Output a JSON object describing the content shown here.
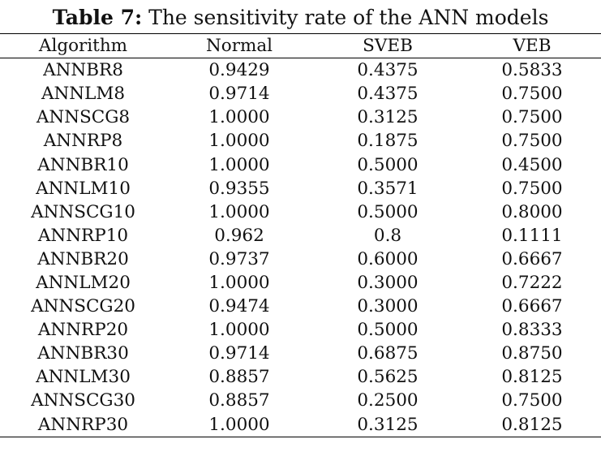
{
  "caption": {
    "label": "Table 7:",
    "text": " The sensitivity rate of the ANN models"
  },
  "table": {
    "headers": [
      "Algorithm",
      "Normal",
      "SVEB",
      "VEB"
    ],
    "rows": [
      [
        "ANNBR8",
        "0.9429",
        "0.4375",
        "0.5833"
      ],
      [
        "ANNLM8",
        "0.9714",
        "0.4375",
        "0.7500"
      ],
      [
        "ANNSCG8",
        "1.0000",
        "0.3125",
        "0.7500"
      ],
      [
        "ANNRP8",
        "1.0000",
        "0.1875",
        "0.7500"
      ],
      [
        "ANNBR10",
        "1.0000",
        "0.5000",
        "0.4500"
      ],
      [
        "ANNLM10",
        "0.9355",
        "0.3571",
        "0.7500"
      ],
      [
        "ANNSCG10",
        "1.0000",
        "0.5000",
        "0.8000"
      ],
      [
        "ANNRP10",
        "0.962",
        "0.8",
        "0.1111"
      ],
      [
        "ANNBR20",
        "0.9737",
        "0.6000",
        "0.6667"
      ],
      [
        "ANNLM20",
        "1.0000",
        "0.3000",
        "0.7222"
      ],
      [
        "ANNSCG20",
        "0.9474",
        "0.3000",
        "0.6667"
      ],
      [
        "ANNRP20",
        "1.0000",
        "0.5000",
        "0.8333"
      ],
      [
        "ANNBR30",
        "0.9714",
        "0.6875",
        "0.8750"
      ],
      [
        "ANNLM30",
        "0.8857",
        "0.5625",
        "0.8125"
      ],
      [
        "ANNSCG30",
        "0.8857",
        "0.2500",
        "0.7500"
      ],
      [
        "ANNRP30",
        "1.0000",
        "0.3125",
        "0.8125"
      ]
    ]
  }
}
